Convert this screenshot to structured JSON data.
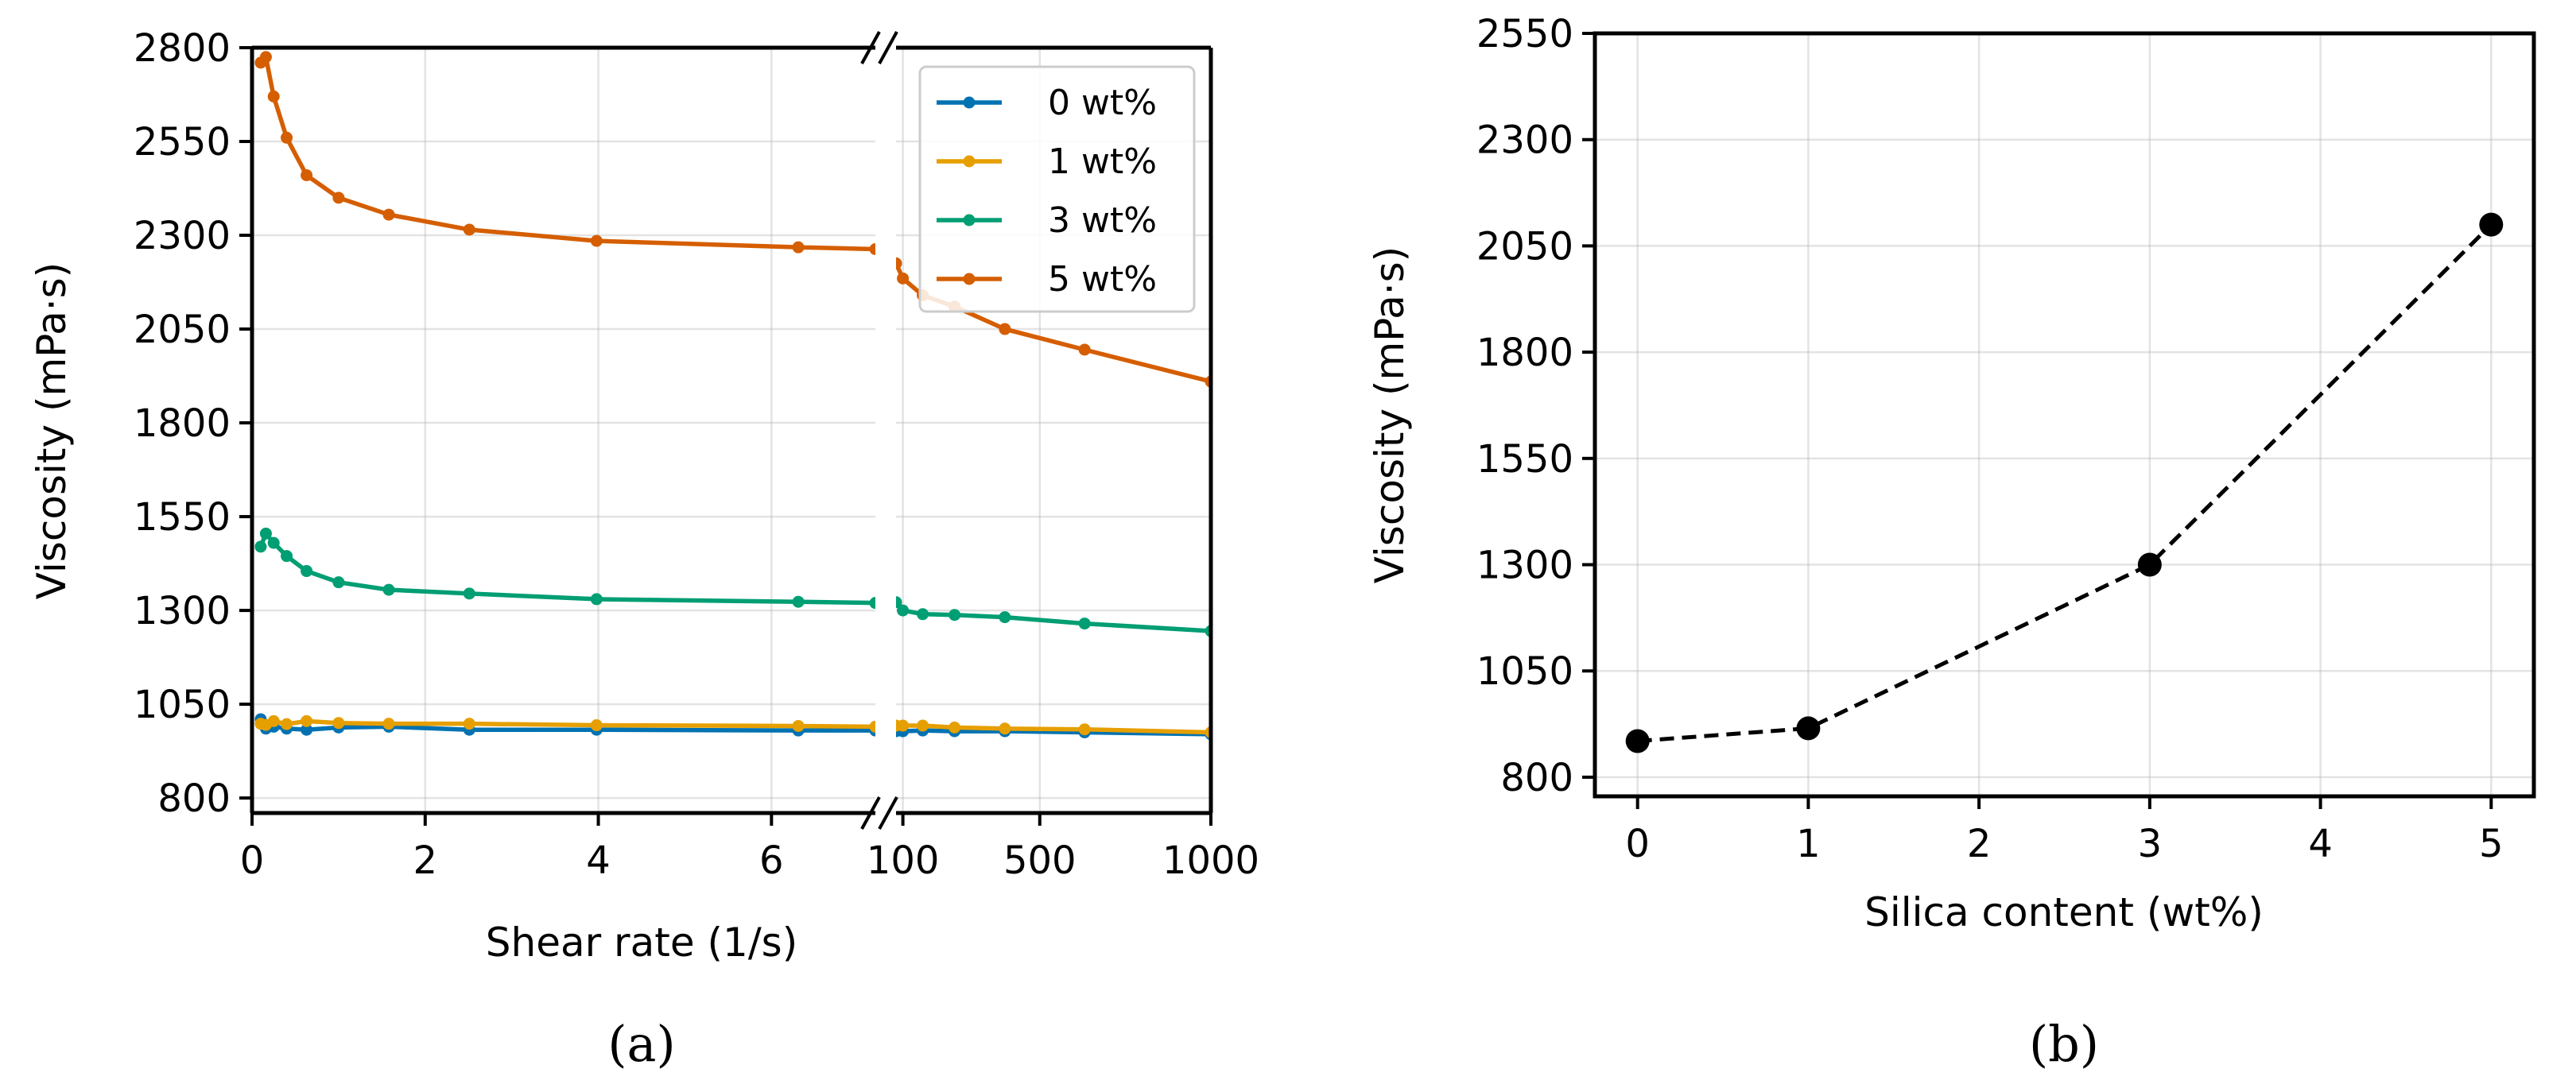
{
  "chart_data": [
    {
      "type": "line",
      "panel_label": "(a)",
      "xlabel": "Shear rate (1/s)",
      "ylabel": "Viscosity (mPa·s)",
      "ylim": [
        760,
        2800
      ],
      "yticks": [
        800,
        1050,
        1300,
        1550,
        1800,
        2050,
        2300,
        2550,
        2800
      ],
      "grid": true,
      "legend_position": "upper right",
      "broken_x_axis": true,
      "x_segments": [
        {
          "xlim": [
            0,
            7.2
          ],
          "ticks": [
            0,
            2,
            4,
            6
          ]
        },
        {
          "xlim": [
            80,
            1000
          ],
          "ticks": [
            100,
            500,
            1000
          ],
          "tick_labels": [
            "100",
            "500",
            "1000"
          ]
        }
      ],
      "series": [
        {
          "name": "0 wt%",
          "color": "#0072b2",
          "left": {
            "x": [
              0.1,
              0.16,
              0.25,
              0.4,
              0.63,
              1.0,
              1.58,
              2.51,
              3.98,
              6.31,
              7.2
            ],
            "y": [
              1010,
              985,
              990,
              985,
              982,
              988,
              990,
              982,
              982,
              980,
              980
            ]
          },
          "right": {
            "x": [
              80,
              100,
              158,
              251,
              398,
              631,
              1000
            ],
            "y": [
              978,
              978,
              980,
              978,
              978,
              975,
              970
            ]
          }
        },
        {
          "name": "1 wt%",
          "color": "#e69f00",
          "left": {
            "x": [
              0.1,
              0.16,
              0.25,
              0.4,
              0.63,
              1.0,
              1.58,
              2.51,
              3.98,
              6.31,
              7.2
            ],
            "y": [
              998,
              995,
              1005,
              997,
              1005,
              1000,
              998,
              998,
              994,
              992,
              990
            ]
          },
          "right": {
            "x": [
              80,
              100,
              158,
              251,
              398,
              631,
              1000
            ],
            "y": [
              993,
              993,
              993,
              988,
              985,
              983,
              975
            ]
          }
        },
        {
          "name": "3 wt%",
          "color": "#009e73",
          "left": {
            "x": [
              0.1,
              0.16,
              0.25,
              0.4,
              0.63,
              1.0,
              1.58,
              2.51,
              3.98,
              6.31,
              7.2
            ],
            "y": [
              1470,
              1505,
              1480,
              1445,
              1405,
              1375,
              1355,
              1345,
              1330,
              1323,
              1320
            ]
          },
          "right": {
            "x": [
              80,
              100,
              158,
              251,
              398,
              631,
              1000
            ],
            "y": [
              1322,
              1300,
              1290,
              1288,
              1282,
              1265,
              1245
            ]
          }
        },
        {
          "name": "5 wt%",
          "color": "#d55e00",
          "left": {
            "x": [
              0.1,
              0.16,
              0.25,
              0.4,
              0.63,
              1.0,
              1.58,
              2.51,
              3.98,
              6.31,
              7.2
            ],
            "y": [
              2760,
              2775,
              2670,
              2560,
              2460,
              2400,
              2355,
              2315,
              2285,
              2268,
              2263
            ]
          },
          "right": {
            "x": [
              80,
              100,
              158,
              251,
              398,
              631,
              1000
            ],
            "y": [
              2225,
              2185,
              2140,
              2110,
              2050,
              1995,
              1910
            ]
          }
        }
      ]
    },
    {
      "type": "line",
      "panel_label": "(b)",
      "xlabel": "Silica content (wt%)",
      "ylabel": "Viscosity (mPa·s)",
      "xlim": [
        -0.25,
        5.25
      ],
      "ylim": [
        755,
        2550
      ],
      "xticks": [
        0,
        1,
        2,
        3,
        4,
        5
      ],
      "yticks": [
        800,
        1050,
        1300,
        1550,
        1800,
        2050,
        2300,
        2550
      ],
      "grid": true,
      "line_style": "dashed",
      "color": "#000000",
      "x": [
        0,
        1,
        3,
        5
      ],
      "y": [
        885,
        915,
        1300,
        2100
      ]
    }
  ]
}
